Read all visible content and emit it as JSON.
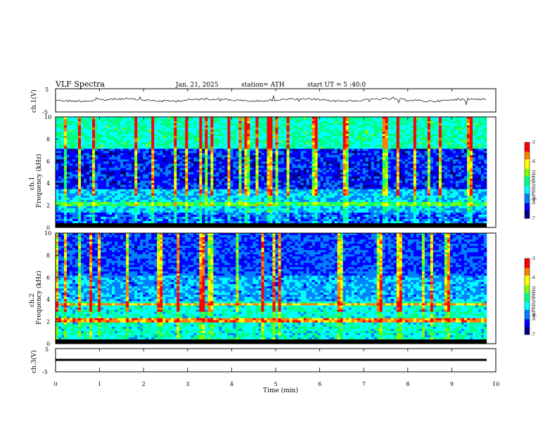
{
  "header": {
    "title": "VLF Spectra",
    "date": "Jan. 21, 2025",
    "station": "station= ATH",
    "start": "start UT = 5 :40:0"
  },
  "colors": {
    "colormap": [
      "#000080",
      "#0000ff",
      "#0080ff",
      "#00ffff",
      "#00ff80",
      "#80ff00",
      "#ffff00",
      "#ff8000",
      "#ff0000",
      "#ffffff"
    ],
    "background": "#ffffff",
    "trace": "#000000"
  },
  "chart_data": [
    {
      "type": "line",
      "ylabel": "ch.1(V)",
      "ylim": [
        -5,
        5
      ],
      "yticks": [
        "5",
        "-5"
      ],
      "xlim": [
        0,
        10
      ],
      "baseline": 0,
      "description_points": [
        [
          0,
          0.2
        ],
        [
          1,
          0.1
        ],
        [
          2,
          0.3
        ],
        [
          3,
          0.0
        ],
        [
          4,
          -0.1
        ],
        [
          5,
          0.2
        ],
        [
          6,
          0.1
        ],
        [
          7,
          0.3
        ],
        [
          8,
          0.2
        ],
        [
          9,
          0.0
        ],
        [
          9.8,
          0.4
        ]
      ]
    },
    {
      "type": "heatmap",
      "ylabel": "ch.1\nFrequency (kHz)",
      "ylim": [
        0,
        10
      ],
      "yticks": [
        "0",
        "2",
        "4",
        "6",
        "8",
        "10"
      ],
      "xlim": [
        0,
        10
      ],
      "colorbar": {
        "label": "log(PSD)(V²/Hz)",
        "ticks": [
          "-3",
          "-4",
          "-5",
          "-6",
          "-7"
        ],
        "range": [
          -7,
          -3
        ]
      }
    },
    {
      "type": "heatmap",
      "ylabel": "ch.2\nFrequency (kHz)",
      "ylim": [
        0,
        10
      ],
      "yticks": [
        "0",
        "2",
        "4",
        "6",
        "8",
        "10"
      ],
      "xlim": [
        0,
        10
      ],
      "colorbar": {
        "label": "log(PSD)(V²/Hz)",
        "ticks": [
          "-3",
          "-4",
          "-5",
          "-6",
          "-7"
        ],
        "range": [
          -7,
          -3
        ]
      }
    },
    {
      "type": "line",
      "ylabel": "ch.3(V)",
      "ylim": [
        -5,
        5
      ],
      "yticks": [
        "5",
        "-5"
      ],
      "xlim": [
        0,
        10
      ],
      "baseline": -2.5,
      "xlabel": "Time (min)",
      "xticks": [
        "0",
        "1",
        "2",
        "3",
        "4",
        "5",
        "6",
        "7",
        "8",
        "9",
        "10"
      ]
    }
  ]
}
